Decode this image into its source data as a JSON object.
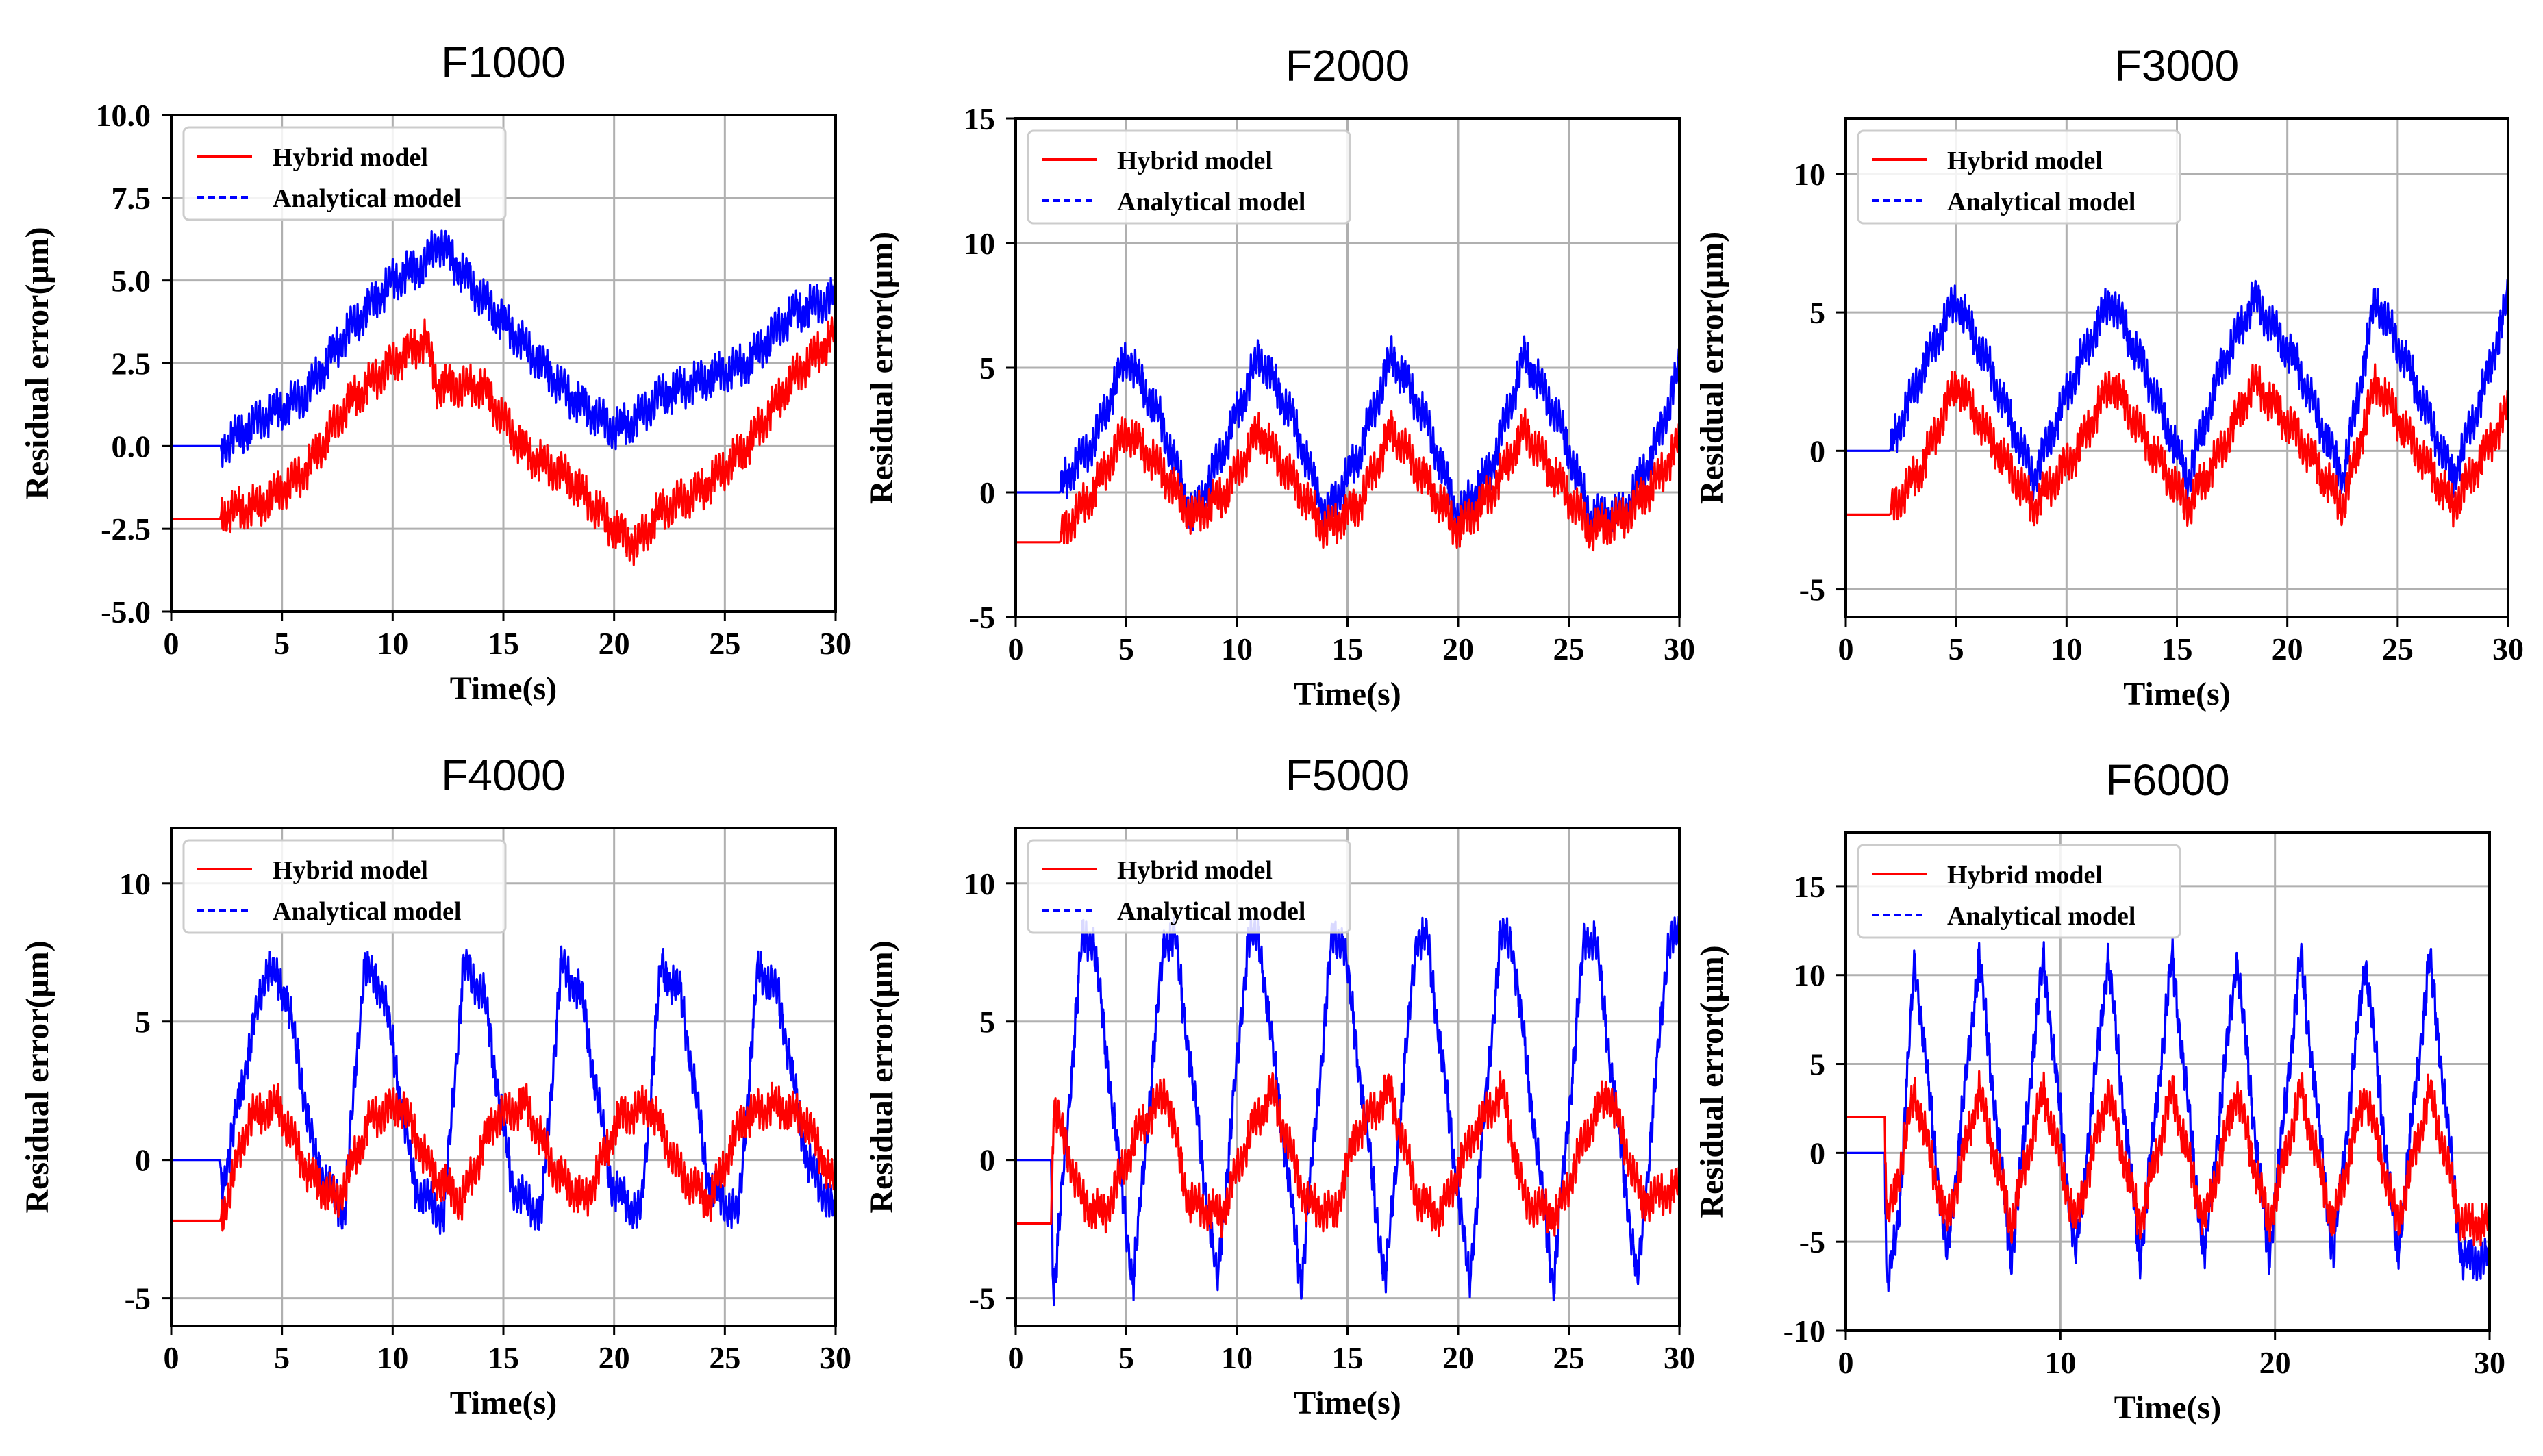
{
  "colors": {
    "hybrid": "#ff0000",
    "analytical": "#0000ff",
    "grid": "#b0b0b0",
    "axis": "#000000"
  },
  "legend_labels": {
    "hybrid": "Hybrid model",
    "analytical": "Analytical  model"
  },
  "chart_data": [
    {
      "type": "line",
      "title": "F1000",
      "xlabel": "Time(s)",
      "ylabel": "Residual error(μm)",
      "xlim": [
        0,
        30
      ],
      "ylim": [
        -5,
        10
      ],
      "grid": true,
      "legend": "top-left",
      "xticks": [
        0,
        5,
        10,
        15,
        20,
        25,
        30
      ],
      "xtick_labels": [
        "0",
        "5",
        "10",
        "15",
        "20",
        "25",
        "30"
      ],
      "yticks": [
        -5,
        -2.5,
        0,
        2.5,
        5,
        7.5,
        10
      ],
      "ytick_labels": [
        "-5.0",
        "-2.5",
        "0.0",
        "2.5",
        "5.0",
        "7.5",
        "10.0"
      ],
      "series": [
        {
          "name": "Hybrid model",
          "x": [
            0,
            2.2,
            2.3,
            4,
            6,
            8,
            10,
            11.5,
            12,
            14,
            16,
            18,
            20,
            21,
            22,
            24,
            26,
            28,
            30
          ],
          "y": [
            -2.2,
            -2.2,
            -2,
            -1.8,
            -0.8,
            1.3,
            2.5,
            3.2,
            1.8,
            1.8,
            -0.2,
            -1,
            -2.5,
            -3,
            -2,
            -1.3,
            0,
            2,
            3.4
          ]
        },
        {
          "name": "Analytical model",
          "x": [
            0,
            2.2,
            2.3,
            4,
            6,
            8,
            10,
            11.5,
            12,
            14,
            16,
            18,
            20,
            21,
            22,
            24,
            26,
            28,
            30
          ],
          "y": [
            0,
            0,
            0,
            0.8,
            1.5,
            3.5,
            5,
            5.5,
            6.2,
            4.5,
            3,
            1.5,
            0.5,
            0.8,
            1.5,
            2,
            2.5,
            4,
            4.5
          ]
        }
      ]
    },
    {
      "type": "line",
      "title": "F2000",
      "xlabel": "Time(s)",
      "ylabel": "Residual error(μm)",
      "xlim": [
        0,
        30
      ],
      "ylim": [
        -5,
        15
      ],
      "grid": true,
      "legend": "top-left",
      "xticks": [
        0,
        5,
        10,
        15,
        20,
        25,
        30
      ],
      "xtick_labels": [
        "0",
        "5",
        "10",
        "15",
        "20",
        "25",
        "30"
      ],
      "yticks": [
        -5,
        0,
        5,
        10,
        15
      ],
      "ytick_labels": [
        "-5",
        "0",
        "5",
        "10",
        "15"
      ],
      "series": [
        {
          "name": "Hybrid model",
          "x": [
            0,
            2,
            2.2,
            3.5,
            5,
            6.5,
            8,
            9.5,
            11,
            12.5,
            14,
            15.5,
            17,
            18.5,
            20,
            21.5,
            23,
            24.5,
            26,
            27.5,
            29,
            30
          ],
          "y": [
            -2,
            -2,
            -1.5,
            0,
            2.5,
            1,
            -1,
            0,
            2.5,
            0.5,
            -1.5,
            -0.5,
            2.5,
            0.5,
            -1.5,
            0,
            2.5,
            0.5,
            -1.5,
            -1,
            0.5,
            2
          ]
        },
        {
          "name": "Analytical model",
          "x": [
            0,
            2,
            2.2,
            3.5,
            5,
            6.5,
            8,
            9.5,
            11,
            12.5,
            14,
            15.5,
            17,
            18.5,
            20,
            21.5,
            23,
            24.5,
            26,
            27.5,
            29,
            30
          ],
          "y": [
            0,
            0,
            0.5,
            2,
            5.5,
            3,
            -1,
            2,
            5.5,
            3,
            -1,
            1.5,
            5.5,
            3,
            -1,
            1,
            5.5,
            3,
            -1,
            -0.8,
            2,
            5
          ]
        }
      ]
    },
    {
      "type": "line",
      "title": "F3000",
      "xlabel": "Time(s)",
      "ylabel": "Residual error(μm)",
      "xlim": [
        0,
        30
      ],
      "ylim": [
        -6,
        12
      ],
      "grid": true,
      "legend": "top-left",
      "xticks": [
        0,
        5,
        10,
        15,
        20,
        25,
        30
      ],
      "xtick_labels": [
        "0",
        "5",
        "10",
        "15",
        "20",
        "25",
        "30"
      ],
      "yticks": [
        -5,
        0,
        5,
        10
      ],
      "ytick_labels": [
        "-5",
        "0",
        "5",
        "10"
      ],
      "series": [
        {
          "name": "Hybrid model",
          "x": [
            0,
            2,
            2.2,
            3.5,
            5,
            6.5,
            8.5,
            10.5,
            12,
            13.5,
            15.5,
            17,
            18.5,
            20.5,
            22.5,
            24,
            25.5,
            27.5,
            29,
            30
          ],
          "y": [
            -2.3,
            -2.3,
            -2,
            -0.5,
            2.5,
            0.5,
            -2,
            0,
            2.5,
            0.5,
            -2,
            0,
            2.5,
            0.5,
            -2,
            2.5,
            0.5,
            -2,
            0,
            1.5
          ]
        },
        {
          "name": "Analytical model",
          "x": [
            0,
            2,
            2.2,
            3.5,
            5,
            6.5,
            8.5,
            10.5,
            12,
            13.5,
            15.5,
            17,
            18.5,
            20.5,
            22.5,
            24,
            25.5,
            27.5,
            29,
            30
          ],
          "y": [
            0,
            0,
            0.5,
            3,
            5.5,
            3,
            -1,
            3,
            5.5,
            3,
            -1,
            3,
            5.5,
            3,
            -1,
            5.5,
            3,
            -1,
            2.5,
            5.5
          ]
        }
      ]
    },
    {
      "type": "line",
      "title": "F4000",
      "xlabel": "Time(s)",
      "ylabel": "Residual error(μm)",
      "xlim": [
        0,
        30
      ],
      "ylim": [
        -6,
        12
      ],
      "grid": true,
      "legend": "top-left",
      "xticks": [
        0,
        5,
        10,
        15,
        20,
        25,
        30
      ],
      "xtick_labels": [
        "0",
        "5",
        "10",
        "15",
        "20",
        "25",
        "30"
      ],
      "yticks": [
        -5,
        0,
        5,
        10
      ],
      "ytick_labels": [
        "-5",
        "0",
        "5",
        "10"
      ],
      "series": [
        {
          "name": "Hybrid model",
          "x": [
            0,
            2.2,
            2.3,
            3.5,
            4.8,
            6.2,
            7.5,
            9,
            10.4,
            11.8,
            13.1,
            14.6,
            16,
            17.4,
            18.7,
            20.2,
            21.6,
            23,
            24.3,
            25.8,
            27.2,
            28.6,
            30
          ],
          "y": [
            -2.2,
            -2.2,
            -2,
            1.5,
            2,
            -0.5,
            -1.5,
            1.5,
            2,
            -0.5,
            -1.5,
            1.5,
            2,
            -0.5,
            -1.5,
            1.5,
            2,
            -0.5,
            -1.5,
            1.5,
            2,
            1.5,
            -1
          ]
        },
        {
          "name": "Analytical model",
          "x": [
            0,
            2.2,
            2.3,
            3.5,
            4.3,
            5.2,
            6.5,
            7.8,
            8.7,
            9.6,
            11,
            12.3,
            13.2,
            14.1,
            15.4,
            16.7,
            17.6,
            18.5,
            19.9,
            21.2,
            22.1,
            23,
            24.3,
            25.6,
            26.5,
            27.4,
            28.7,
            30
          ],
          "y": [
            0,
            0,
            -1,
            4,
            7,
            6,
            0,
            -2,
            7,
            6,
            -1,
            -2,
            7,
            6,
            -1,
            -2,
            7,
            6,
            -1,
            -2,
            7,
            6,
            -1,
            -2,
            7,
            6,
            0,
            -2
          ]
        }
      ]
    },
    {
      "type": "line",
      "title": "F5000",
      "xlabel": "Time(s)",
      "ylabel": "Residual error(μm)",
      "xlim": [
        0,
        30
      ],
      "ylim": [
        -6,
        12
      ],
      "grid": true,
      "legend": "top-left",
      "xticks": [
        0,
        5,
        10,
        15,
        20,
        25,
        30
      ],
      "xtick_labels": [
        "0",
        "5",
        "10",
        "15",
        "20",
        "25",
        "30"
      ],
      "yticks": [
        -5,
        0,
        5,
        10
      ],
      "ytick_labels": [
        "-5",
        "0",
        "5",
        "10"
      ],
      "series": [
        {
          "name": "Hybrid model",
          "x": [
            0,
            1.6,
            1.7,
            3,
            4,
            5.5,
            6.8,
            7.8,
            9.3,
            10.6,
            11.6,
            13.1,
            14.4,
            15.4,
            16.9,
            18.2,
            19.2,
            20.7,
            22,
            23,
            24.5,
            25.8,
            26.8,
            28.3,
            30
          ],
          "y": [
            -2.3,
            -2.3,
            2,
            -1.5,
            -2,
            1,
            2.5,
            -1.5,
            -2,
            1,
            2.5,
            -1.5,
            -2,
            1,
            2.5,
            -1.5,
            -2,
            1,
            2.5,
            -1.5,
            -2,
            1,
            2.5,
            -1.5,
            -1
          ]
        },
        {
          "name": "Analytical model",
          "x": [
            0,
            1.6,
            1.7,
            3,
            3.5,
            5.3,
            6.7,
            7.2,
            9.1,
            10.5,
            11,
            12.9,
            14.3,
            14.8,
            16.7,
            18.1,
            18.6,
            20.5,
            21.9,
            22.4,
            24.3,
            25.7,
            26.2,
            28.1,
            29.5,
            30
          ],
          "y": [
            0,
            0,
            -5,
            8,
            8,
            -4.5,
            8,
            8,
            -4.5,
            8,
            8,
            -4.5,
            8,
            8,
            -4.5,
            8,
            8,
            -4.5,
            8,
            8,
            -4.5,
            8,
            8,
            -4.5,
            8,
            8
          ]
        }
      ]
    },
    {
      "type": "line",
      "title": "F6000",
      "xlabel": "Time(s)",
      "ylabel": "Residual error(μm)",
      "xlim": [
        0,
        30
      ],
      "ylim": [
        -10,
        18
      ],
      "grid": true,
      "legend": "top-left",
      "xticks": [
        0,
        10,
        20,
        30
      ],
      "xtick_labels": [
        "0",
        "10",
        "20",
        "30"
      ],
      "yticks": [
        -10,
        -5,
        0,
        5,
        10,
        15
      ],
      "ytick_labels": [
        "-10",
        "-5",
        "0",
        "5",
        "10",
        "15"
      ],
      "series": [
        {
          "name": "Hybrid model",
          "x": [
            0,
            1.8,
            1.9,
            2.5,
            3.2,
            4.7,
            6.2,
            7.7,
            9.2,
            10.7,
            12.2,
            13.7,
            15.2,
            16.7,
            18.2,
            19.7,
            21.2,
            22.7,
            24.2,
            25.7,
            27.2,
            28.7,
            30
          ],
          "y": [
            2,
            2,
            -4,
            -1,
            3.5,
            -4,
            3.5,
            -4,
            3.5,
            -4,
            3.5,
            -4,
            3.5,
            -4,
            3.5,
            -4,
            3.5,
            -4,
            3.5,
            -4,
            3.5,
            -4,
            -4
          ]
        },
        {
          "name": "Analytical model",
          "x": [
            0,
            1.8,
            1.9,
            2.5,
            3.2,
            4.7,
            6.2,
            7.7,
            9.2,
            10.7,
            12.2,
            13.7,
            15.2,
            16.7,
            18.2,
            19.7,
            21.2,
            22.7,
            24.2,
            25.7,
            27.2,
            28.7,
            30
          ],
          "y": [
            0,
            0,
            -8,
            -3,
            11,
            -6,
            11,
            -6,
            11,
            -6,
            11,
            -6,
            11,
            -6,
            11,
            -6,
            11,
            -6,
            11,
            -6,
            11,
            -6,
            -6
          ]
        }
      ]
    }
  ]
}
